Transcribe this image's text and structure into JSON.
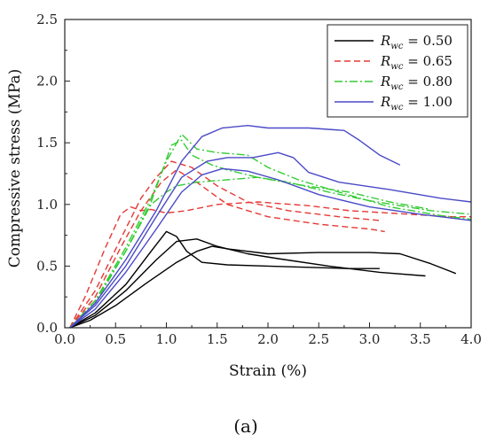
{
  "caption": "(a)",
  "chart_data": {
    "type": "line",
    "xlabel": "Strain (%)",
    "ylabel": "Compressive stress (MPa)",
    "xlim": [
      0,
      4.0
    ],
    "ylim": [
      0,
      2.5
    ],
    "xticks": [
      "0.0",
      "0.5",
      "1.0",
      "1.5",
      "2.0",
      "2.5",
      "3.0",
      "3.5",
      "4.0"
    ],
    "yticks": [
      "0.0",
      "0.5",
      "1.0",
      "1.5",
      "2.0",
      "2.5"
    ],
    "legend_position": "top-right",
    "legend_prefix": "R",
    "legend_subscript": "wc",
    "grid": false,
    "series": [
      {
        "name": "= 0.50",
        "color": "#000000",
        "dash": "solid",
        "curves": [
          [
            [
              0.05,
              0.0
            ],
            [
              0.3,
              0.12
            ],
            [
              0.6,
              0.35
            ],
            [
              0.85,
              0.62
            ],
            [
              1.0,
              0.78
            ],
            [
              1.1,
              0.74
            ],
            [
              1.2,
              0.62
            ],
            [
              1.35,
              0.53
            ],
            [
              1.6,
              0.51
            ],
            [
              2.0,
              0.5
            ],
            [
              2.4,
              0.49
            ],
            [
              2.8,
              0.48
            ],
            [
              3.1,
              0.48
            ]
          ],
          [
            [
              0.05,
              0.0
            ],
            [
              0.3,
              0.1
            ],
            [
              0.6,
              0.3
            ],
            [
              0.9,
              0.55
            ],
            [
              1.1,
              0.7
            ],
            [
              1.3,
              0.72
            ],
            [
              1.5,
              0.66
            ],
            [
              1.8,
              0.6
            ],
            [
              2.1,
              0.56
            ],
            [
              2.6,
              0.5
            ],
            [
              3.1,
              0.45
            ],
            [
              3.55,
              0.42
            ]
          ],
          [
            [
              0.05,
              0.0
            ],
            [
              0.25,
              0.06
            ],
            [
              0.5,
              0.18
            ],
            [
              0.8,
              0.36
            ],
            [
              1.1,
              0.53
            ],
            [
              1.3,
              0.62
            ],
            [
              1.45,
              0.66
            ],
            [
              1.6,
              0.64
            ],
            [
              2.0,
              0.6
            ],
            [
              2.5,
              0.61
            ],
            [
              3.0,
              0.61
            ],
            [
              3.3,
              0.6
            ],
            [
              3.6,
              0.52
            ],
            [
              3.85,
              0.44
            ]
          ]
        ]
      },
      {
        "name": "= 0.65",
        "color": "#e53935",
        "dash": "dashed",
        "curves": [
          [
            [
              0.05,
              0.0
            ],
            [
              0.3,
              0.25
            ],
            [
              0.55,
              0.65
            ],
            [
              0.75,
              0.95
            ],
            [
              0.95,
              1.18
            ],
            [
              1.1,
              1.28
            ],
            [
              1.3,
              1.18
            ],
            [
              1.6,
              1.0
            ],
            [
              2.0,
              0.9
            ],
            [
              2.5,
              0.84
            ],
            [
              3.0,
              0.8
            ],
            [
              3.15,
              0.78
            ]
          ],
          [
            [
              0.05,
              0.0
            ],
            [
              0.3,
              0.3
            ],
            [
              0.55,
              0.72
            ],
            [
              0.75,
              1.05
            ],
            [
              0.9,
              1.22
            ],
            [
              1.05,
              1.35
            ],
            [
              1.25,
              1.3
            ],
            [
              1.5,
              1.15
            ],
            [
              1.8,
              1.02
            ],
            [
              2.2,
              0.95
            ],
            [
              2.7,
              0.9
            ],
            [
              3.1,
              0.87
            ]
          ],
          [
            [
              0.05,
              0.0
            ],
            [
              0.2,
              0.25
            ],
            [
              0.4,
              0.65
            ],
            [
              0.55,
              0.92
            ],
            [
              0.65,
              0.98
            ],
            [
              0.75,
              0.95
            ],
            [
              0.85,
              0.96
            ],
            [
              1.0,
              0.93
            ],
            [
              1.2,
              0.95
            ],
            [
              1.5,
              1.0
            ],
            [
              1.9,
              1.02
            ],
            [
              2.4,
              0.99
            ],
            [
              2.8,
              0.95
            ],
            [
              3.4,
              0.92
            ],
            [
              3.8,
              0.9
            ],
            [
              4.0,
              0.9
            ]
          ]
        ]
      },
      {
        "name": "= 0.80",
        "color": "#33cc33",
        "dash": "dashdot",
        "curves": [
          [
            [
              0.05,
              0.0
            ],
            [
              0.3,
              0.22
            ],
            [
              0.6,
              0.65
            ],
            [
              0.85,
              1.05
            ],
            [
              1.0,
              1.35
            ],
            [
              1.15,
              1.57
            ],
            [
              1.3,
              1.45
            ],
            [
              1.5,
              1.42
            ],
            [
              1.8,
              1.4
            ],
            [
              2.0,
              1.3
            ],
            [
              2.3,
              1.2
            ],
            [
              2.7,
              1.1
            ],
            [
              3.2,
              0.98
            ],
            [
              3.7,
              0.91
            ],
            [
              4.0,
              0.88
            ]
          ],
          [
            [
              0.05,
              0.0
            ],
            [
              0.3,
              0.2
            ],
            [
              0.6,
              0.62
            ],
            [
              0.85,
              1.02
            ],
            [
              1.05,
              1.48
            ],
            [
              1.15,
              1.52
            ],
            [
              1.25,
              1.4
            ],
            [
              1.45,
              1.32
            ],
            [
              1.6,
              1.28
            ],
            [
              1.9,
              1.22
            ],
            [
              2.2,
              1.18
            ],
            [
              2.6,
              1.1
            ],
            [
              3.0,
              1.03
            ],
            [
              3.6,
              0.95
            ],
            [
              4.0,
              0.92
            ]
          ],
          [
            [
              0.05,
              0.0
            ],
            [
              0.3,
              0.22
            ],
            [
              0.6,
              0.62
            ],
            [
              0.85,
              1.0
            ],
            [
              1.0,
              1.1
            ],
            [
              1.1,
              1.15
            ],
            [
              1.3,
              1.18
            ],
            [
              1.6,
              1.2
            ],
            [
              1.9,
              1.22
            ],
            [
              2.3,
              1.16
            ],
            [
              2.8,
              1.1
            ],
            [
              3.2,
              1.02
            ],
            [
              3.6,
              0.96
            ]
          ]
        ]
      },
      {
        "name": "= 1.00",
        "color": "#4a4ac8",
        "dash": "solid",
        "curves": [
          [
            [
              0.05,
              0.0
            ],
            [
              0.3,
              0.2
            ],
            [
              0.6,
              0.55
            ],
            [
              0.9,
              0.95
            ],
            [
              1.15,
              1.35
            ],
            [
              1.35,
              1.55
            ],
            [
              1.55,
              1.62
            ],
            [
              1.8,
              1.64
            ],
            [
              2.0,
              1.62
            ],
            [
              2.4,
              1.62
            ],
            [
              2.75,
              1.6
            ],
            [
              2.9,
              1.52
            ],
            [
              3.1,
              1.4
            ],
            [
              3.3,
              1.32
            ]
          ],
          [
            [
              0.05,
              0.0
            ],
            [
              0.3,
              0.18
            ],
            [
              0.6,
              0.5
            ],
            [
              0.9,
              0.9
            ],
            [
              1.15,
              1.22
            ],
            [
              1.4,
              1.35
            ],
            [
              1.6,
              1.38
            ],
            [
              1.85,
              1.38
            ],
            [
              2.1,
              1.42
            ],
            [
              2.25,
              1.38
            ],
            [
              2.4,
              1.26
            ],
            [
              2.7,
              1.18
            ],
            [
              3.2,
              1.12
            ],
            [
              3.7,
              1.05
            ],
            [
              4.0,
              1.02
            ]
          ],
          [
            [
              0.05,
              0.0
            ],
            [
              0.3,
              0.15
            ],
            [
              0.6,
              0.45
            ],
            [
              0.9,
              0.8
            ],
            [
              1.15,
              1.1
            ],
            [
              1.35,
              1.24
            ],
            [
              1.55,
              1.29
            ],
            [
              1.8,
              1.27
            ],
            [
              2.1,
              1.2
            ],
            [
              2.5,
              1.08
            ],
            [
              3.0,
              0.98
            ],
            [
              3.5,
              0.92
            ],
            [
              4.0,
              0.87
            ]
          ]
        ]
      }
    ]
  }
}
